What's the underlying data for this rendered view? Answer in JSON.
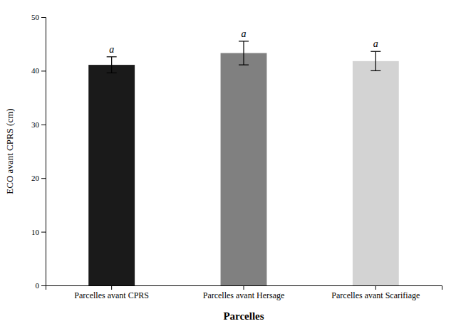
{
  "chart_data": {
    "type": "bar",
    "categories": [
      "Parcelles avant CPRS",
      "Parcelles avant Hersage",
      "Parcelles avant Scarifiage"
    ],
    "values": [
      41.1,
      43.3,
      41.8
    ],
    "errors": [
      1.5,
      2.2,
      1.8
    ],
    "colors": [
      "#1a1a1a",
      "#808080",
      "#d3d3d3"
    ],
    "significance_labels": [
      "a",
      "a",
      "a"
    ],
    "ylabel": "ECO avant CPRS (cm)",
    "xlabel": "Parcelles",
    "ylim": [
      0,
      50
    ],
    "yticks": [
      0,
      10,
      20,
      30,
      40,
      50
    ],
    "grid": false
  }
}
